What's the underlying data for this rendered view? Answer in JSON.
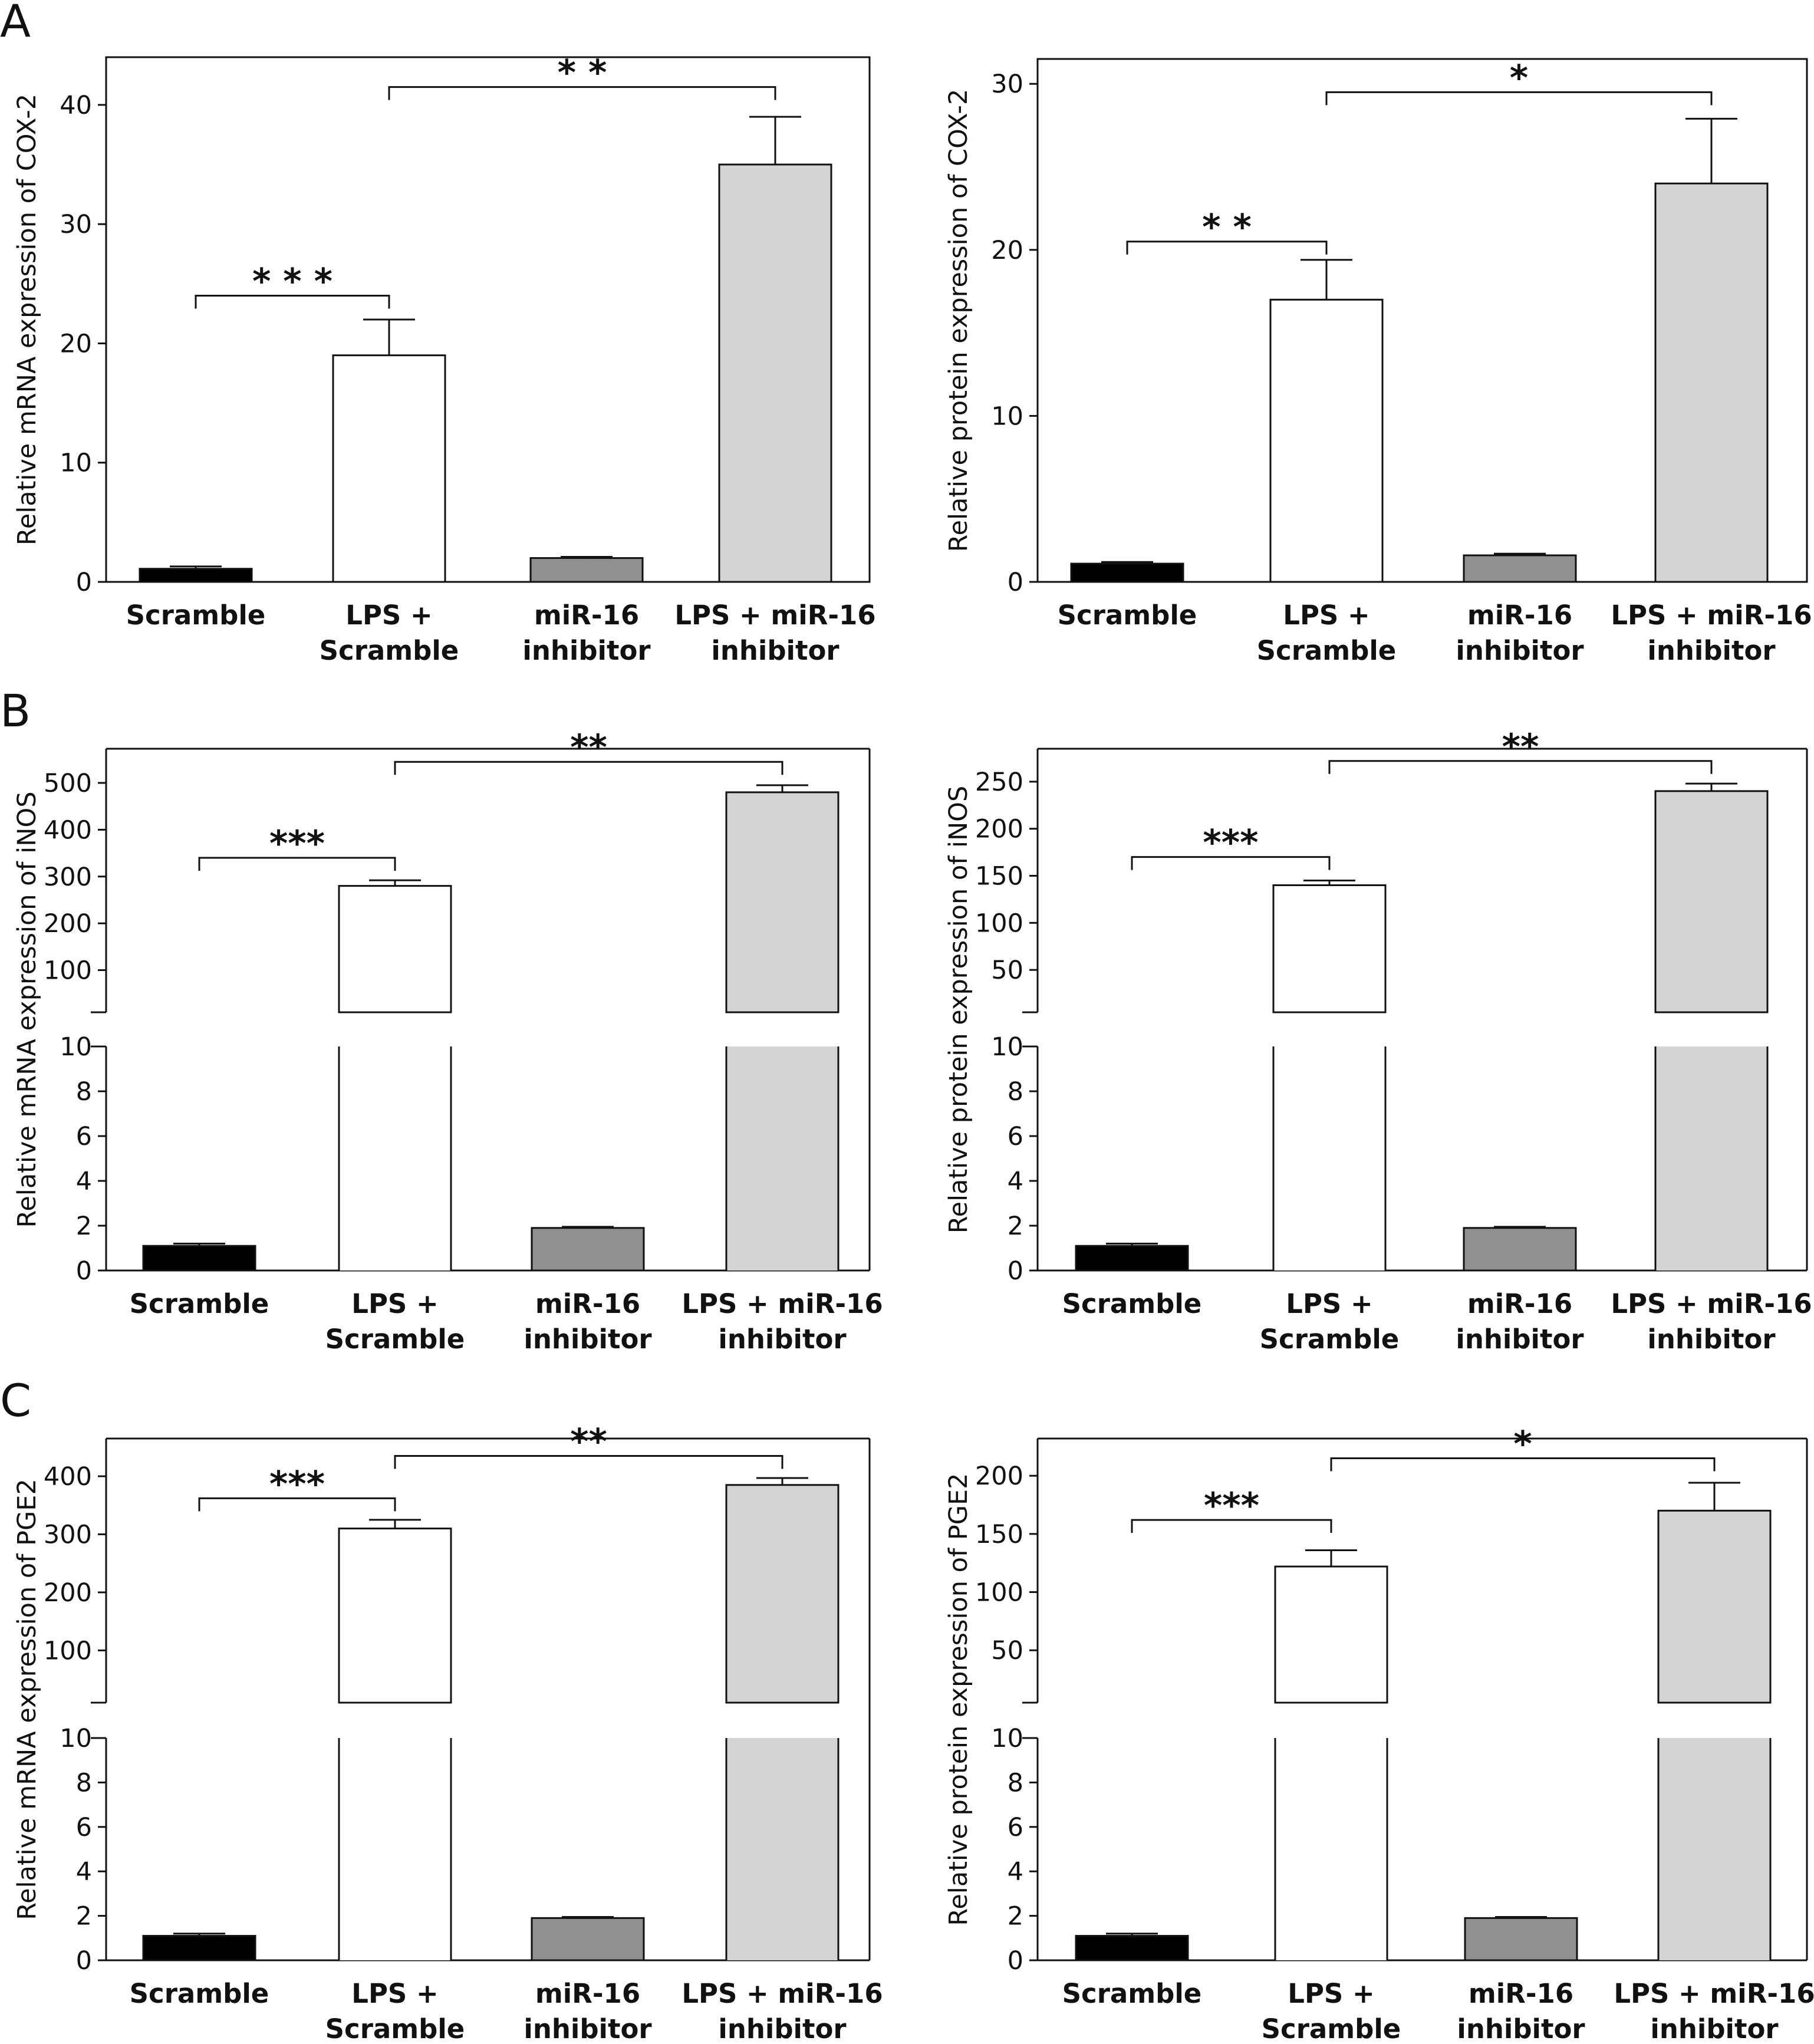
{
  "panels": [
    "A",
    "B",
    "C"
  ],
  "categories": [
    [
      "Scramble"
    ],
    [
      "LPS +",
      "Scramble"
    ],
    [
      "miR-16",
      "inhibitor"
    ],
    [
      "LPS + miR-16",
      "inhibitor"
    ]
  ],
  "colors": {
    "bar_fills": [
      "#000000",
      "#ffffff",
      "#909090",
      "#d4d4d4"
    ],
    "axis": "#111111"
  },
  "chart_data": [
    {
      "type": "bar",
      "panel": "A",
      "ylabel": "Relative mRNA expression of COX-2",
      "ylim": [
        0,
        44
      ],
      "yticks": [
        0,
        10,
        20,
        30,
        40
      ],
      "values": [
        1.1,
        19,
        2.0,
        35
      ],
      "errors": [
        0.2,
        3.0,
        0.1,
        4.0
      ],
      "significance": [
        {
          "from": 0,
          "to": 1,
          "label": "* * *",
          "y": 24
        },
        {
          "from": 1,
          "to": 3,
          "label": "* *",
          "y": 41.5
        }
      ]
    },
    {
      "type": "bar",
      "panel": "A",
      "ylabel": "Relative protein expression of COX-2",
      "ylim": [
        0,
        31.5
      ],
      "yticks": [
        0,
        10,
        20,
        30
      ],
      "values": [
        1.1,
        17,
        1.6,
        24
      ],
      "errors": [
        0.1,
        2.4,
        0.1,
        3.9
      ],
      "significance": [
        {
          "from": 0,
          "to": 1,
          "label": "* *",
          "y": 20.5
        },
        {
          "from": 1,
          "to": 3,
          "label": "*",
          "y": 29.5
        }
      ]
    },
    {
      "type": "bar",
      "panel": "B",
      "ylabel": "Relative mRNA expression of iNOS",
      "broken_axis": true,
      "lower": {
        "ylim": [
          0,
          10
        ],
        "yticks": [
          0,
          2,
          4,
          6,
          8,
          10
        ]
      },
      "upper": {
        "ylim": [
          10,
          573
        ],
        "yticks": [
          100,
          200,
          300,
          400,
          500
        ]
      },
      "values": [
        1.1,
        280,
        1.9,
        480
      ],
      "errors": [
        0.1,
        12,
        0.05,
        15
      ],
      "significance": [
        {
          "from": 0,
          "to": 1,
          "label": "***",
          "y": 340
        },
        {
          "from": 1,
          "to": 3,
          "label": "**",
          "y": 545
        }
      ]
    },
    {
      "type": "bar",
      "panel": "B",
      "ylabel": "Relative protein expression of iNOS",
      "broken_axis": true,
      "lower": {
        "ylim": [
          0,
          10
        ],
        "yticks": [
          0,
          2,
          4,
          6,
          8,
          10
        ]
      },
      "upper": {
        "ylim": [
          5,
          285
        ],
        "yticks": [
          50,
          100,
          150,
          200,
          250
        ]
      },
      "values": [
        1.1,
        140,
        1.9,
        240
      ],
      "errors": [
        0.1,
        5,
        0.05,
        8
      ],
      "significance": [
        {
          "from": 0,
          "to": 1,
          "label": "***",
          "y": 170
        },
        {
          "from": 1,
          "to": 3,
          "label": "**",
          "y": 272
        }
      ]
    },
    {
      "type": "bar",
      "panel": "C",
      "ylabel": "Relative mRNA expression of PGE2",
      "broken_axis": true,
      "lower": {
        "ylim": [
          0,
          10
        ],
        "yticks": [
          0,
          2,
          4,
          6,
          8,
          10
        ]
      },
      "upper": {
        "ylim": [
          10,
          465
        ],
        "yticks": [
          100,
          200,
          300,
          400
        ]
      },
      "values": [
        1.1,
        310,
        1.9,
        385
      ],
      "errors": [
        0.1,
        15,
        0.05,
        12
      ],
      "significance": [
        {
          "from": 0,
          "to": 1,
          "label": "***",
          "y": 362
        },
        {
          "from": 1,
          "to": 3,
          "label": "**",
          "y": 435
        }
      ]
    },
    {
      "type": "bar",
      "panel": "C",
      "ylabel": "Relative protein expression of PGE2",
      "broken_axis": true,
      "lower": {
        "ylim": [
          0,
          10
        ],
        "yticks": [
          0,
          2,
          4,
          6,
          8,
          10
        ]
      },
      "upper": {
        "ylim": [
          5,
          232
        ],
        "yticks": [
          50,
          100,
          150,
          200
        ]
      },
      "values": [
        1.1,
        122,
        1.9,
        170
      ],
      "errors": [
        0.1,
        14,
        0.05,
        24
      ],
      "significance": [
        {
          "from": 0,
          "to": 1,
          "label": "***",
          "y": 162
        },
        {
          "from": 1,
          "to": 3,
          "label": "*",
          "y": 215
        }
      ]
    }
  ]
}
